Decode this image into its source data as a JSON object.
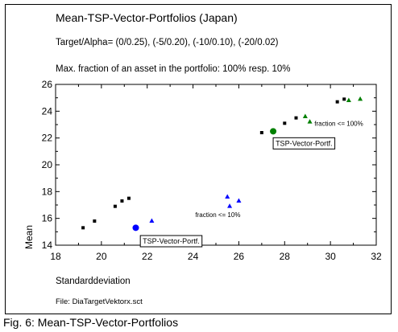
{
  "caption": "Fig. 6: Mean-TSP-Vector-Portfolios",
  "chart_data": {
    "type": "scatter",
    "title": "Mean-TSP-Vector-Portfolios (Japan)",
    "subtitle1": "Target/Alpha= (0/0.25), (-5/0.20), (-10/0.10), (-20/0.02)",
    "subtitle2": "Max. fraction of an asset in the portfolio: 100%  resp. 10%",
    "xlabel": "Standarddeviation",
    "ylabel": "Mean",
    "file_note": "File: DiaTargetVektorx.sct",
    "xlim": [
      18,
      32
    ],
    "ylim": [
      14,
      26
    ],
    "xticks": [
      18,
      20,
      22,
      24,
      26,
      28,
      30,
      32
    ],
    "yticks": [
      14,
      16,
      18,
      20,
      22,
      24,
      26
    ],
    "grid": false,
    "series": [
      {
        "color": "#000000",
        "marker": "square",
        "points": [
          [
            19.2,
            15.3
          ],
          [
            19.7,
            15.8
          ],
          [
            20.6,
            16.9
          ],
          [
            20.9,
            17.3
          ],
          [
            21.2,
            17.5
          ],
          [
            27.0,
            22.4
          ],
          [
            28.0,
            23.1
          ],
          [
            28.5,
            23.5
          ],
          [
            30.3,
            24.7
          ],
          [
            30.6,
            24.9
          ]
        ]
      },
      {
        "color": "#0000ff",
        "marker": "triangle",
        "points": [
          [
            22.2,
            15.8
          ],
          [
            25.5,
            17.6
          ],
          [
            25.6,
            16.9
          ],
          [
            26.0,
            17.3
          ]
        ]
      },
      {
        "color": "#008000",
        "marker": "triangle",
        "points": [
          [
            28.9,
            23.6
          ],
          [
            29.1,
            23.2
          ],
          [
            30.8,
            24.8
          ],
          [
            31.3,
            24.9
          ]
        ]
      },
      {
        "name": "TSP-Vector-Portf.",
        "color": "#0000ff",
        "marker": "dot",
        "points": [
          [
            21.5,
            15.3
          ]
        ]
      },
      {
        "name": "TSP-Vector-Portf.",
        "color": "#008000",
        "marker": "dot",
        "points": [
          [
            27.5,
            22.5
          ]
        ]
      }
    ],
    "annotations": [
      {
        "text": "fraction <= 100%",
        "x": 29.3,
        "y": 22.9
      },
      {
        "text": "fraction <= 10%",
        "x": 24.1,
        "y": 16.1
      }
    ],
    "boxed_labels": [
      {
        "text": "TSP-Vector-Portf.",
        "x": 27.5,
        "y": 22.2
      },
      {
        "text": "TSP-Vector-Portf.",
        "x": 21.7,
        "y": 14.9
      }
    ]
  }
}
